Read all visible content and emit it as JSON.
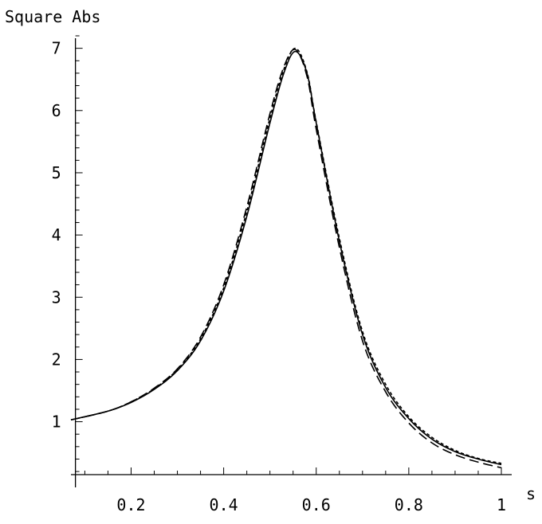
{
  "chart_data": {
    "type": "line",
    "title": "",
    "xlabel": "s",
    "ylabel": "Square Abs",
    "xlim": [
      0.07,
      1.0
    ],
    "ylim": [
      0.15,
      7.2
    ],
    "x_axis_at_y": 0.15,
    "y_axis_at_x": 0.0797,
    "x_major_ticks": [
      0.2,
      0.4,
      0.6,
      0.8,
      1.0
    ],
    "x_tick_labels": [
      "0.2",
      "0.4",
      "0.6",
      "0.8",
      "1"
    ],
    "x_minor_step": 0.05,
    "y_major_ticks": [
      1,
      2,
      3,
      4,
      5,
      6,
      7
    ],
    "y_tick_labels": [
      "1",
      "2",
      "3",
      "4",
      "5",
      "6",
      "7"
    ],
    "y_minor_step": 0.2,
    "grid": false,
    "series": [
      {
        "style": "solid",
        "x": [
          0.07,
          0.15,
          0.2,
          0.25,
          0.3,
          0.35,
          0.4,
          0.45,
          0.5,
          0.53,
          0.555,
          0.58,
          0.6,
          0.65,
          0.7,
          0.75,
          0.8,
          0.85,
          0.9,
          0.95,
          1.0
        ],
        "y": [
          1.03,
          1.17,
          1.31,
          1.52,
          1.82,
          2.3,
          3.1,
          4.3,
          5.8,
          6.6,
          6.95,
          6.6,
          5.8,
          3.9,
          2.4,
          1.55,
          1.05,
          0.72,
          0.52,
          0.4,
          0.31
        ]
      },
      {
        "style": "dashed",
        "x": [
          0.07,
          0.15,
          0.2,
          0.25,
          0.3,
          0.35,
          0.4,
          0.45,
          0.5,
          0.53,
          0.555,
          0.58,
          0.6,
          0.65,
          0.7,
          0.75,
          0.8,
          0.85,
          0.9,
          0.95,
          1.0
        ],
        "y": [
          1.03,
          1.17,
          1.32,
          1.54,
          1.85,
          2.36,
          3.2,
          4.45,
          5.95,
          6.7,
          6.98,
          6.55,
          5.7,
          3.8,
          2.3,
          1.48,
          0.98,
          0.66,
          0.47,
          0.35,
          0.26
        ]
      },
      {
        "style": "fine-dashed",
        "x": [
          0.07,
          0.15,
          0.2,
          0.25,
          0.3,
          0.35,
          0.4,
          0.45,
          0.5,
          0.53,
          0.555,
          0.58,
          0.6,
          0.65,
          0.7,
          0.75,
          0.8,
          0.85,
          0.9,
          0.95,
          1.0
        ],
        "y": [
          1.03,
          1.17,
          1.32,
          1.53,
          1.84,
          2.33,
          3.15,
          4.38,
          5.88,
          6.66,
          7.0,
          6.62,
          5.82,
          3.95,
          2.45,
          1.6,
          1.08,
          0.75,
          0.54,
          0.41,
          0.33
        ]
      }
    ]
  }
}
